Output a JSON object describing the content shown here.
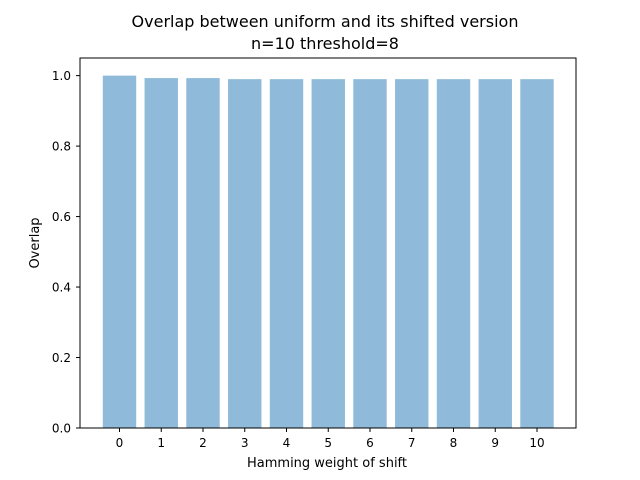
{
  "chart_data": {
    "type": "bar",
    "title_line1": "Overlap between uniform and its shifted version",
    "title_line2": "n=10    threshold=8",
    "xlabel": "Hamming weight of shift",
    "ylabel": "Overlap",
    "categories": [
      "0",
      "1",
      "2",
      "3",
      "4",
      "5",
      "6",
      "7",
      "8",
      "9",
      "10"
    ],
    "values": [
      1.0,
      0.993,
      0.993,
      0.99,
      0.99,
      0.99,
      0.99,
      0.99,
      0.99,
      0.99,
      0.99
    ],
    "ylim": [
      0,
      1.05
    ],
    "yticks": [
      0.0,
      0.2,
      0.4,
      0.6,
      0.8,
      1.0
    ],
    "ytick_labels": [
      "0.0",
      "0.2",
      "0.4",
      "0.6",
      "0.8",
      "1.0"
    ],
    "bar_color": "#8fbad9",
    "grid": false,
    "legend": "none"
  }
}
